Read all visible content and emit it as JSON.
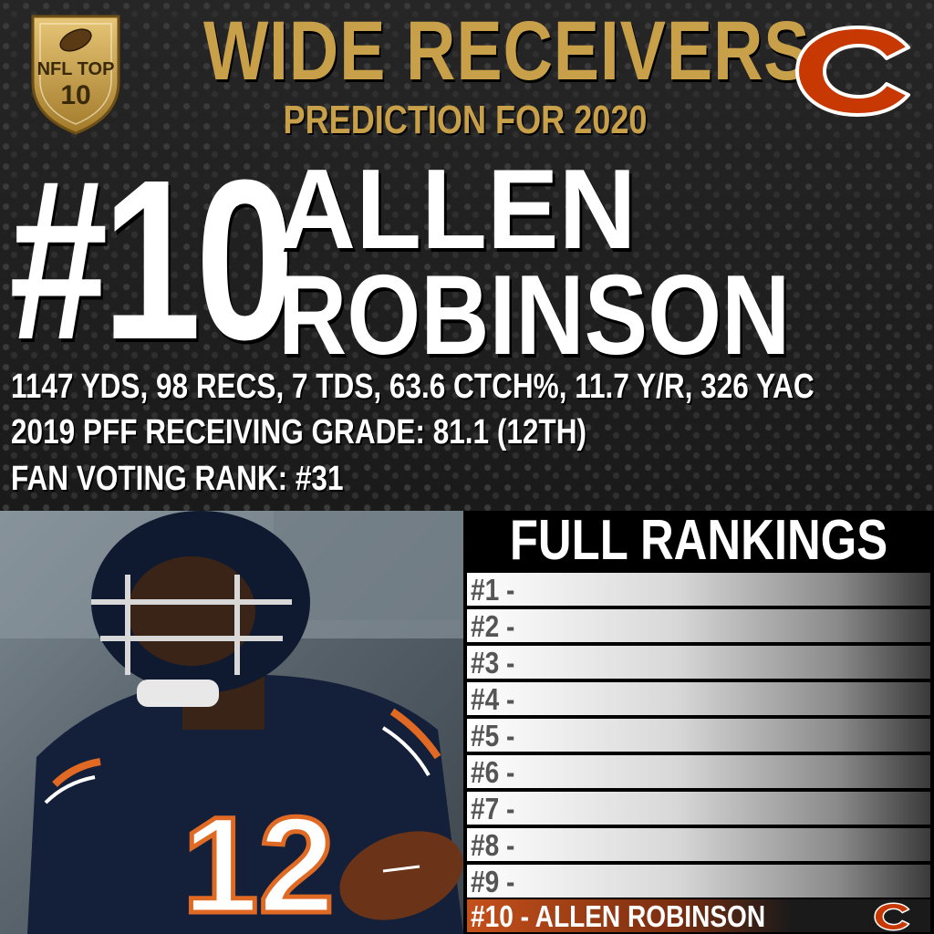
{
  "header": {
    "badge_text": [
      "NFL TOP",
      "10"
    ],
    "title": "WIDE RECEIVERS",
    "subtitle": "PREDICTION FOR 2020"
  },
  "player": {
    "rank": "#10",
    "first_name": "ALLEN",
    "last_name": "ROBINSON",
    "stats": "1147 YDS, 98 RECS, 7 TDS, 63.6 CTCH%, 11.7 Y/R, 326 YAC",
    "grade": "2019 PFF RECEIVING GRADE: 81.1 (12TH)",
    "fan_rank": "FAN VOTING RANK: #31"
  },
  "photo": {
    "jersey_number": "12"
  },
  "rankings": {
    "title": "FULL RANKINGS",
    "rows": [
      "#1 -",
      "#2 -",
      "#3 -",
      "#4 -",
      "#5 -",
      "#6 -",
      "#7 -",
      "#8 -",
      "#9 -",
      "#10 - ALLEN ROBINSON"
    ]
  },
  "colors": {
    "gold": "#c9a04a",
    "bears_orange": "#c83803",
    "bears_navy": "#0b162a"
  },
  "icons": [
    "nfl-top10-badge-icon",
    "bears-logo-icon"
  ]
}
